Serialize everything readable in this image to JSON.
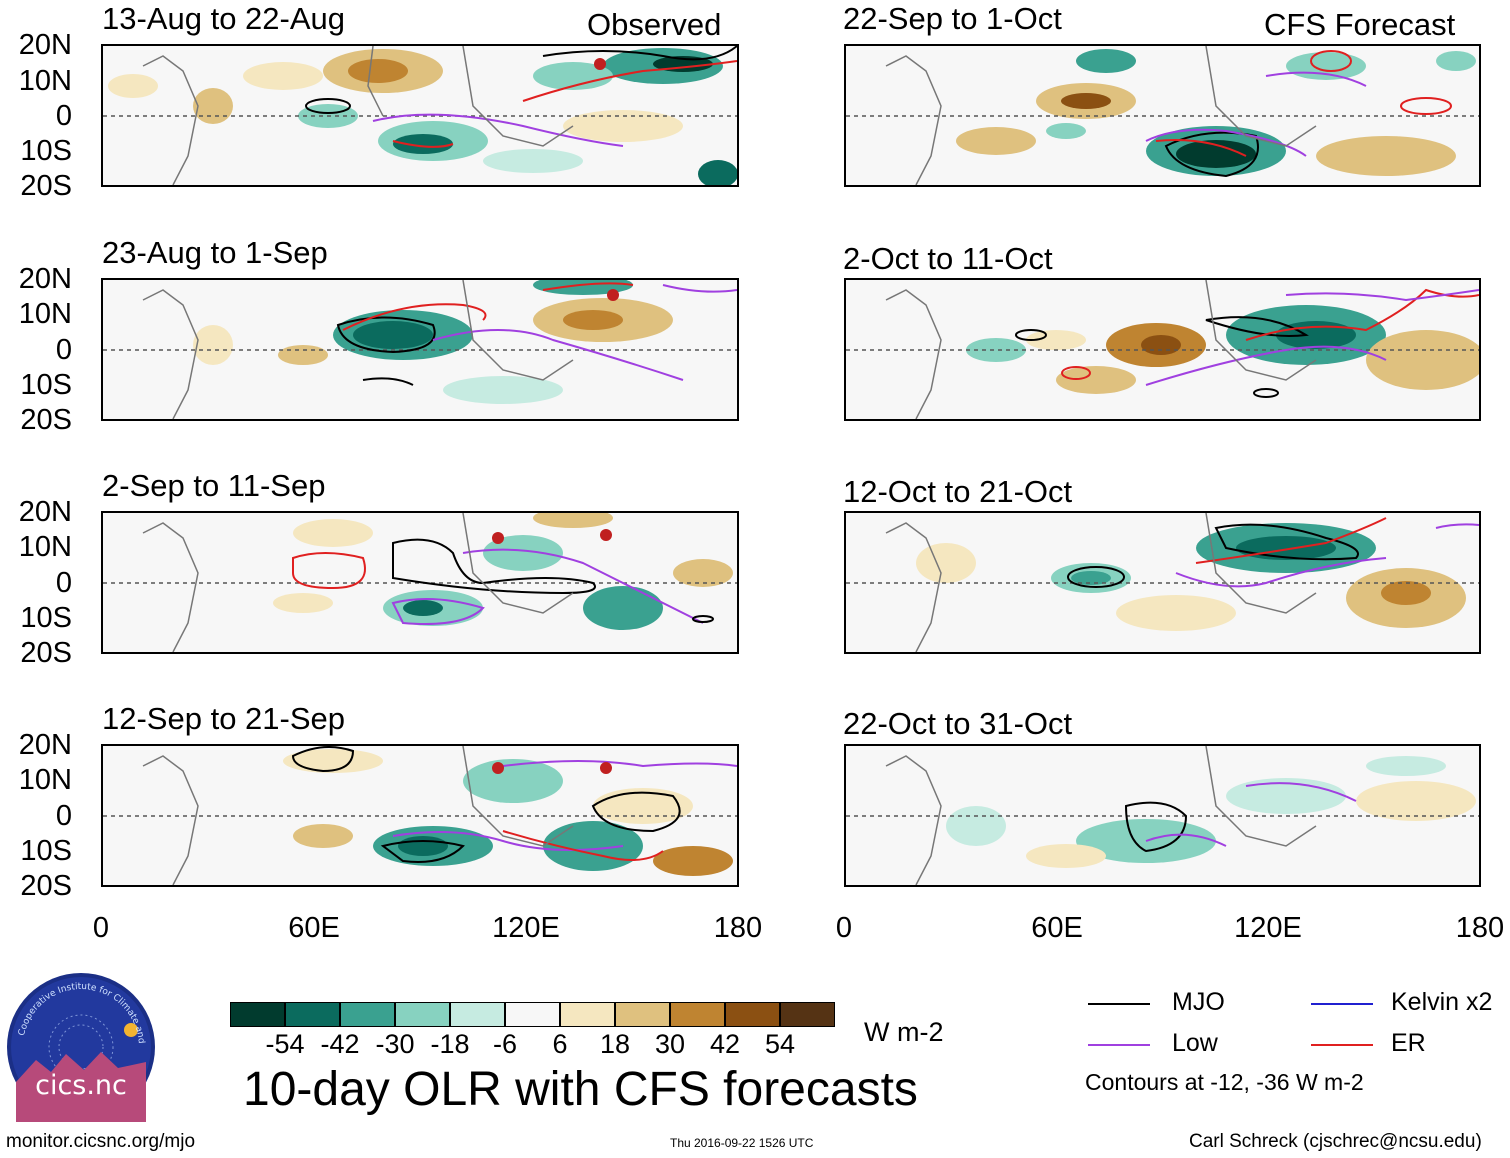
{
  "header": {
    "observed_label": "Observed",
    "forecast_label": "CFS Forecast"
  },
  "panels": [
    {
      "title": "13-Aug to 22-Aug",
      "column": "observed"
    },
    {
      "title": "23-Aug to 1-Sep",
      "column": "observed"
    },
    {
      "title": "2-Sep to 11-Sep",
      "column": "observed"
    },
    {
      "title": "12-Sep to 21-Sep",
      "column": "observed"
    },
    {
      "title": "22-Sep to 1-Oct",
      "column": "forecast"
    },
    {
      "title": "2-Oct to 11-Oct",
      "column": "forecast"
    },
    {
      "title": "12-Oct to 21-Oct",
      "column": "forecast"
    },
    {
      "title": "22-Oct to 31-Oct",
      "column": "forecast"
    }
  ],
  "axes": {
    "lat_labels": [
      "20N",
      "10N",
      "0",
      "10S",
      "20S"
    ],
    "lon_labels": [
      "0",
      "60E",
      "120E",
      "180"
    ]
  },
  "colorbar": {
    "colors": [
      "#013b2e",
      "#0b6b5e",
      "#3aa190",
      "#87d2c0",
      "#c6ebe1",
      "#f7f7f7",
      "#f5e7c0",
      "#dfc17f",
      "#bf8431",
      "#8b5012",
      "#553314"
    ],
    "labels": [
      "-54",
      "-42",
      "-30",
      "-18",
      "-6",
      "6",
      "18",
      "30",
      "42",
      "54"
    ],
    "units": "W m-2"
  },
  "main_title": "10-day OLR with CFS forecasts",
  "legend": {
    "items": [
      {
        "label": "MJO",
        "color": "#000000"
      },
      {
        "label": "Kelvin x2",
        "color": "#2020d0"
      },
      {
        "label": "Low",
        "color": "#a040e0"
      },
      {
        "label": "ER",
        "color": "#e02020"
      }
    ],
    "note": "Contours at -12, -36 W m-2"
  },
  "logo": {
    "ring_text": "Cooperative Institute for Climate and Satellites",
    "name": "cics.nc"
  },
  "footer": {
    "url": "monitor.cicsnc.org/mjo",
    "timestamp": "Thu 2016-09-22 1526 UTC",
    "credit": "Carl Schreck (cjschrec@ncsu.edu)"
  }
}
